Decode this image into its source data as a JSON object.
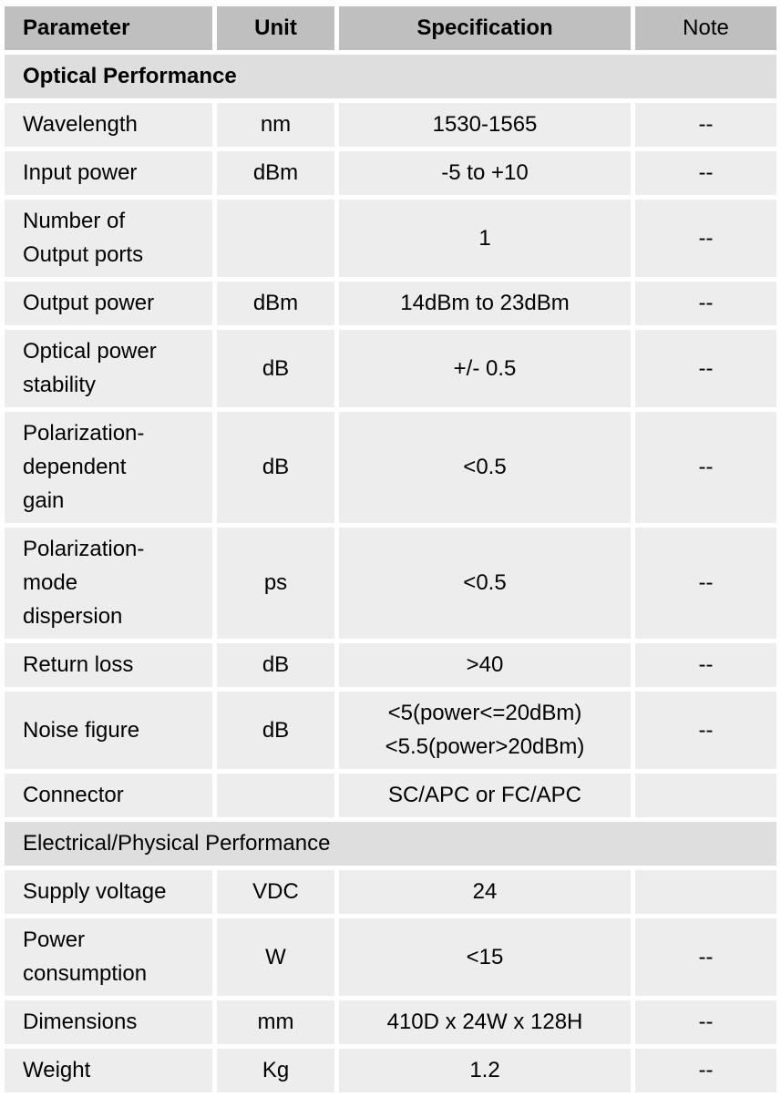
{
  "header": {
    "parameter": "Parameter",
    "unit": "Unit",
    "specification": "Specification",
    "note": "Note"
  },
  "colors": {
    "header_bg": "#bfbfbf",
    "section_bg": "#dedede",
    "cell_bg": "#ededed"
  },
  "rows": [
    {
      "type": "section",
      "bold": true,
      "label": "Optical Performance"
    },
    {
      "parameter": "Wavelength",
      "unit": "nm",
      "specification": "1530-1565",
      "note": "--"
    },
    {
      "parameter": "Input power",
      "unit": "dBm",
      "specification": "-5 to +10",
      "note": "--"
    },
    {
      "parameter": "Number of\nOutput ports",
      "unit": "",
      "specification": "1",
      "note": "--"
    },
    {
      "parameter": "Output power",
      "unit": "dBm",
      "specification": "14dBm to 23dBm",
      "note": "--"
    },
    {
      "parameter": "Optical power\nstability",
      "unit": "dB",
      "specification": "+/- 0.5",
      "note": "--"
    },
    {
      "parameter": "Polarization-\ndependent\ngain",
      "unit": "dB",
      "specification": "<0.5",
      "note": "--"
    },
    {
      "parameter": "Polarization-\nmode\ndispersion",
      "unit": "ps",
      "specification": "<0.5",
      "note": "--"
    },
    {
      "parameter": "Return loss",
      "unit": "dB",
      "specification": ">40",
      "note": "--"
    },
    {
      "parameter": "Noise figure",
      "unit": "dB",
      "specification": "<5(power<=20dBm)\n<5.5(power>20dBm)",
      "note": "--"
    },
    {
      "parameter": "Connector",
      "unit": "",
      "specification": "SC/APC or FC/APC",
      "note": ""
    },
    {
      "type": "section",
      "bold": false,
      "label": "Electrical/Physical Performance"
    },
    {
      "parameter": "Supply voltage",
      "unit": "VDC",
      "specification": "24",
      "note": ""
    },
    {
      "parameter": "Power\nconsumption",
      "unit": "W",
      "specification": "<15",
      "note": "--"
    },
    {
      "parameter": "Dimensions",
      "unit": "mm",
      "specification": "410D x 24W x 128H",
      "note": "--"
    },
    {
      "parameter": "Weight",
      "unit": "Kg",
      "specification": "1.2",
      "note": "--"
    }
  ]
}
